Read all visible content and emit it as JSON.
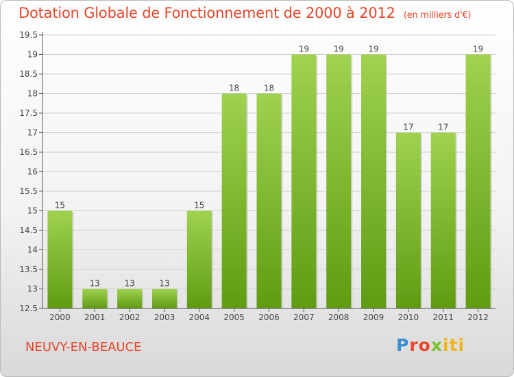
{
  "title": "Dotation Globale de Fonctionnement de 2000 à 2012",
  "unit": "(en milliers d'€)",
  "commune": "NEUVY-EN-BEAUCE",
  "logo": {
    "p1": "P",
    "p2": "ro",
    "p3": "x",
    "p4": "iti"
  },
  "colors": {
    "title": "#e8462a",
    "bar_top": "#9fd24f",
    "bar_bottom": "#5f9c12"
  },
  "chart_data": {
    "type": "bar",
    "title": "Dotation Globale de Fonctionnement de 2000 à 2012",
    "subtitle": "(en milliers d'€)",
    "categories": [
      "2000",
      "2001",
      "2002",
      "2003",
      "2004",
      "2005",
      "2006",
      "2007",
      "2008",
      "2009",
      "2010",
      "2011",
      "2012"
    ],
    "values": [
      15,
      13,
      13,
      13,
      15,
      18,
      18,
      19,
      19,
      19,
      17,
      17,
      19
    ],
    "value_labels": [
      "15",
      "13",
      "13",
      "13",
      "15",
      "18",
      "18",
      "19",
      "19",
      "19",
      "17",
      "17",
      "19"
    ],
    "ylim": [
      12.5,
      19.5
    ],
    "yticks": [
      12.5,
      13,
      13.5,
      14,
      14.5,
      15,
      15.5,
      16,
      16.5,
      17,
      17.5,
      18,
      18.5,
      19,
      19.5
    ],
    "ytick_labels": [
      "12.5",
      "13",
      "13.5",
      "14",
      "14.5",
      "15",
      "15.5",
      "16",
      "16.5",
      "17",
      "17.5",
      "18",
      "18.5",
      "19",
      "19.5"
    ],
    "grid": true,
    "xlabel": "",
    "ylabel": ""
  }
}
